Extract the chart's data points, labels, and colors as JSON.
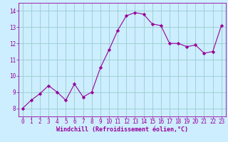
{
  "x": [
    0,
    1,
    2,
    3,
    4,
    5,
    6,
    7,
    8,
    9,
    10,
    11,
    12,
    13,
    14,
    15,
    16,
    17,
    18,
    19,
    20,
    21,
    22,
    23
  ],
  "y": [
    8.0,
    8.5,
    8.9,
    9.4,
    9.0,
    8.5,
    9.5,
    8.7,
    9.0,
    10.5,
    11.6,
    12.8,
    13.7,
    13.9,
    13.8,
    13.2,
    13.1,
    12.0,
    12.0,
    11.8,
    11.9,
    11.4,
    11.5,
    13.1
  ],
  "line_color": "#990099",
  "marker": "D",
  "marker_size": 2.2,
  "bg_color": "#cceeff",
  "grid_color": "#99cccc",
  "xlabel": "Windchill (Refroidissement éolien,°C)",
  "xlabel_color": "#990099",
  "xlabel_fontsize": 6.0,
  "tick_color": "#990099",
  "tick_fontsize": 5.5,
  "ylim": [
    7.5,
    14.5
  ],
  "xlim": [
    -0.5,
    23.5
  ],
  "yticks": [
    8,
    9,
    10,
    11,
    12,
    13,
    14
  ],
  "xticks": [
    0,
    1,
    2,
    3,
    4,
    5,
    6,
    7,
    8,
    9,
    10,
    11,
    12,
    13,
    14,
    15,
    16,
    17,
    18,
    19,
    20,
    21,
    22,
    23
  ]
}
